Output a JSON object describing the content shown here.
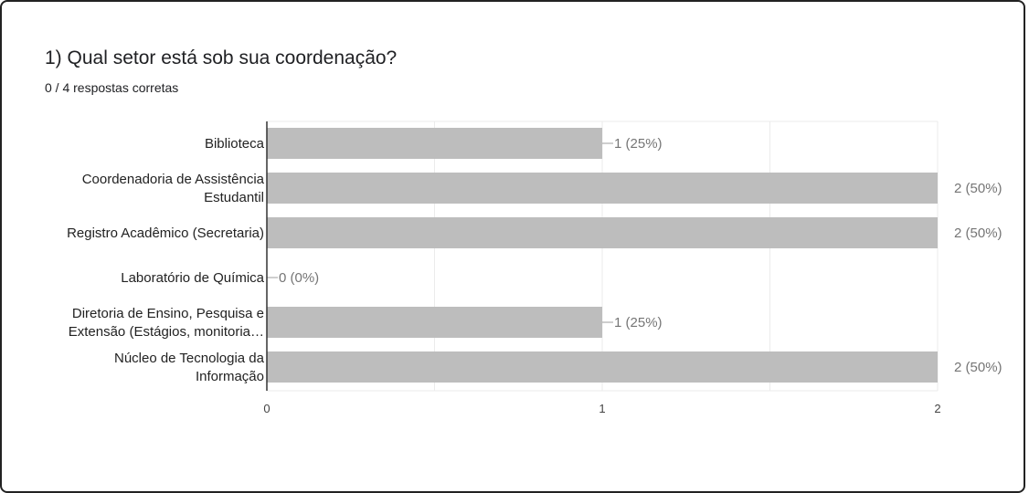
{
  "question": {
    "title": "1) Qual setor está sob sua coordenação?",
    "subtitle": "0 / 4 respostas corretas"
  },
  "colors": {
    "bar": "#bdbdbd",
    "grid": "#ebebeb",
    "axis": "#333333",
    "value_text": "#757575",
    "label_text": "#222222"
  },
  "chart_data": {
    "type": "bar",
    "orientation": "horizontal",
    "categories": [
      [
        "Biblioteca"
      ],
      [
        "Coordenadoria de Assistência",
        "Estudantil"
      ],
      [
        "Registro Acadêmico (Secretaria)"
      ],
      [
        "Laboratório de Química"
      ],
      [
        "Diretoria de Ensino, Pesquisa e",
        "Extensão (Estágios, monitoria…"
      ],
      [
        "Núcleo de Tecnologia da",
        "Informação"
      ]
    ],
    "values": [
      1,
      2,
      2,
      0,
      1,
      2
    ],
    "value_labels": [
      "1 (25%)",
      "2 (50%)",
      "2 (50%)",
      "0 (0%)",
      "1 (25%)",
      "2 (50%)"
    ],
    "xlim": [
      0,
      2
    ],
    "ticks": [
      "0",
      "1",
      "2"
    ],
    "grid": true,
    "title": "",
    "xlabel": "",
    "ylabel": ""
  }
}
